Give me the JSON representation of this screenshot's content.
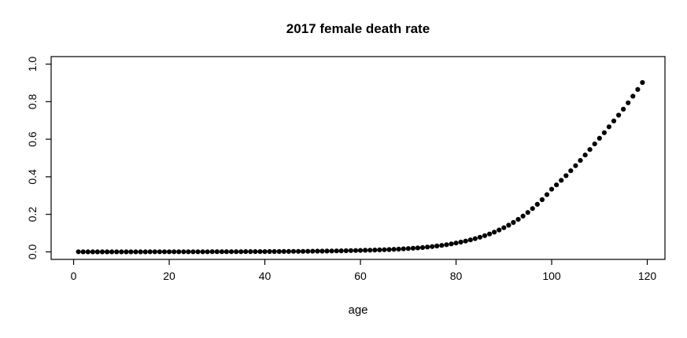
{
  "chart_data": {
    "type": "scatter",
    "title": "2017 female death rate",
    "xlabel": "age",
    "ylabel": "",
    "legend": "none",
    "grid": false,
    "point_color": "#000000",
    "background_color": "#ffffff",
    "x_ticks": [
      0,
      20,
      40,
      60,
      80,
      100,
      120
    ],
    "y_ticks": [
      "0.0",
      "0.2",
      "0.4",
      "0.6",
      "0.8",
      "1.0"
    ],
    "xlim": [
      -4.7,
      123.7
    ],
    "ylim": [
      -0.04,
      1.04
    ],
    "x": [
      1,
      2,
      3,
      4,
      5,
      6,
      7,
      8,
      9,
      10,
      11,
      12,
      13,
      14,
      15,
      16,
      17,
      18,
      19,
      20,
      21,
      22,
      23,
      24,
      25,
      26,
      27,
      28,
      29,
      30,
      31,
      32,
      33,
      34,
      35,
      36,
      37,
      38,
      39,
      40,
      41,
      42,
      43,
      44,
      45,
      46,
      47,
      48,
      49,
      50,
      51,
      52,
      53,
      54,
      55,
      56,
      57,
      58,
      59,
      60,
      61,
      62,
      63,
      64,
      65,
      66,
      67,
      68,
      69,
      70,
      71,
      72,
      73,
      74,
      75,
      76,
      77,
      78,
      79,
      80,
      81,
      82,
      83,
      84,
      85,
      86,
      87,
      88,
      89,
      90,
      91,
      92,
      93,
      94,
      95,
      96,
      97,
      98,
      99,
      100,
      101,
      102,
      103,
      104,
      105,
      106,
      107,
      108,
      109,
      110,
      111,
      112,
      113,
      114,
      115,
      116,
      117,
      118,
      119
    ],
    "y": [
      0.0004,
      0.0002,
      0.0002,
      0.0001,
      0.0001,
      0.0001,
      0.0001,
      0.0001,
      0.0001,
      0.0001,
      0.0001,
      0.0002,
      0.0002,
      0.0003,
      0.0003,
      0.0004,
      0.0004,
      0.0005,
      0.0005,
      0.0005,
      0.0006,
      0.0006,
      0.0006,
      0.0007,
      0.0007,
      0.0007,
      0.0008,
      0.0008,
      0.0009,
      0.0009,
      0.001,
      0.001,
      0.0011,
      0.0011,
      0.0012,
      0.0013,
      0.0013,
      0.0014,
      0.0015,
      0.0016,
      0.0017,
      0.0018,
      0.002,
      0.0021,
      0.0023,
      0.0025,
      0.0027,
      0.0029,
      0.0032,
      0.0035,
      0.0038,
      0.0041,
      0.0045,
      0.0049,
      0.0053,
      0.0057,
      0.0062,
      0.0067,
      0.0072,
      0.0078,
      0.0084,
      0.0091,
      0.0098,
      0.0106,
      0.0115,
      0.0125,
      0.0136,
      0.0148,
      0.0161,
      0.0176,
      0.0193,
      0.0212,
      0.0233,
      0.0257,
      0.0284,
      0.0314,
      0.0347,
      0.0384,
      0.0425,
      0.047,
      0.052,
      0.0576,
      0.0637,
      0.0705,
      0.078,
      0.0863,
      0.0954,
      0.1054,
      0.1165,
      0.1287,
      0.1421,
      0.1569,
      0.1731,
      0.1907,
      0.21,
      0.2309,
      0.2536,
      0.2783,
      0.3049,
      0.334,
      0.357,
      0.381,
      0.406,
      0.432,
      0.459,
      0.487,
      0.516,
      0.545,
      0.575,
      0.605,
      0.635,
      0.666,
      0.697,
      0.728,
      0.76,
      0.794,
      0.829,
      0.865,
      0.902
    ]
  }
}
